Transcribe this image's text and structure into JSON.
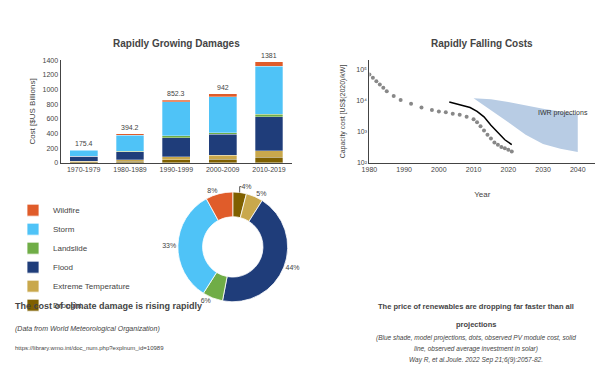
{
  "chart_data": [
    {
      "type": "bar",
      "title": "Rapidly Growing Damages",
      "stacked": true,
      "categories": [
        "1970-1979",
        "1980-1989",
        "1990-1999",
        "2000-2009",
        "2010-2019"
      ],
      "series": [
        {
          "name": "Drought",
          "color": "#7f6000",
          "values": [
            10,
            18,
            38,
            45,
            75
          ]
        },
        {
          "name": "Extreme Temperature",
          "color": "#c9a84c",
          "values": [
            12,
            22,
            45,
            55,
            90
          ]
        },
        {
          "name": "Flood",
          "color": "#1f3d7a",
          "values": [
            65,
            110,
            260,
            290,
            460
          ]
        },
        {
          "name": "Landslide",
          "color": "#70ad47",
          "values": [
            4,
            8,
            25,
            18,
            38
          ]
        },
        {
          "name": "Storm",
          "color": "#4fc3f7",
          "values": [
            79,
            216,
            462,
            492,
            657
          ]
        },
        {
          "name": "Wildfire",
          "color": "#e05c2a",
          "values": [
            5.4,
            20.2,
            22.3,
            42,
            61
          ]
        }
      ],
      "totals": [
        175.4,
        394.2,
        852.3,
        942,
        1381
      ],
      "ylabel": "Cost [$US Billions]",
      "ylim": [
        0,
        1400
      ],
      "yticks": [
        0,
        200,
        400,
        600,
        800,
        1000,
        1200,
        1400
      ],
      "grid": false,
      "annotations": [
        "The cost of climate damage is rising rapidly",
        "(Data from World Meteorological Organization)",
        "https://library.wmo.int/doc_num.php?explnum_id=10989"
      ]
    },
    {
      "type": "pie",
      "categories": [
        "Drought",
        "Extreme Temperature",
        "Flood",
        "Landslide",
        "Storm",
        "Wildfire"
      ],
      "values": [
        4,
        5,
        44,
        6,
        33,
        8
      ],
      "value_labels": [
        "4%",
        "5%",
        "44%",
        "6%",
        "33%",
        "8%"
      ],
      "colors": [
        "#7f6000",
        "#c9a84c",
        "#1f3d7a",
        "#70ad47",
        "#4fc3f7",
        "#e05c2a"
      ],
      "data_labels": true,
      "legend": "left"
    },
    {
      "type": "line",
      "title": "Rapidly Falling Costs",
      "xlabel": "Year",
      "ylabel": "Capacity cost [US$(2020)/kW]",
      "log": "y",
      "xlim": [
        1980,
        2045
      ],
      "xticks": [
        1980,
        1990,
        2000,
        2010,
        2020,
        2030,
        2040
      ],
      "ylim": [
        100,
        200000
      ],
      "yticks": [
        {
          "value": 100,
          "label": "10²"
        },
        {
          "value": 1000,
          "label": "10³"
        },
        {
          "value": 10000,
          "label": "10⁴"
        },
        {
          "value": 100000,
          "label": "10⁵"
        }
      ],
      "grid": false,
      "series": [
        {
          "type": "band",
          "color": "#b8cce4",
          "x": [
            2010,
            2015,
            2020,
            2025,
            2030,
            2035,
            2040
          ],
          "lower": [
            12000,
            5000,
            2000,
            800,
            400,
            280,
            220
          ],
          "upper": [
            12000,
            11000,
            9000,
            7000,
            5500,
            4500,
            3500
          ]
        },
        {
          "type": "scatter",
          "marker": "circle",
          "color": "#888888",
          "x": [
            1980,
            1981,
            1982,
            1983,
            1984,
            1985,
            1987,
            1989,
            1992,
            1995,
            1998,
            2000,
            2002,
            2004,
            2006,
            2008,
            2010,
            2011,
            2012,
            2013,
            2014,
            2015,
            2016,
            2017,
            2018,
            2019,
            2020,
            2021
          ],
          "values": [
            70000,
            55000,
            42000,
            33000,
            26000,
            20000,
            14000,
            10500,
            8000,
            6000,
            5000,
            4500,
            4200,
            3800,
            3500,
            3000,
            2500,
            2000,
            1500,
            1100,
            800,
            600,
            450,
            380,
            320,
            290,
            260,
            230
          ]
        },
        {
          "type": "line",
          "line_style": "solid",
          "color": "#000000",
          "x": [
            2003,
            2005,
            2007,
            2009,
            2011,
            2013,
            2015,
            2017,
            2019,
            2021
          ],
          "values": [
            9000,
            8000,
            7000,
            6000,
            4500,
            3000,
            1600,
            900,
            550,
            380
          ]
        }
      ],
      "annotations": [
        {
          "text": "IWR projections",
          "x": 2028,
          "y": 2500
        },
        "The price of renewables are dropping far faster than all",
        "projections",
        "(Blue shade, model projections, dots, observed PV module cost, solid",
        "line, observed average investment in solar)",
        "Way R, et al.Joule. 2022 Sep 21;6(9):2057-82."
      ]
    }
  ]
}
